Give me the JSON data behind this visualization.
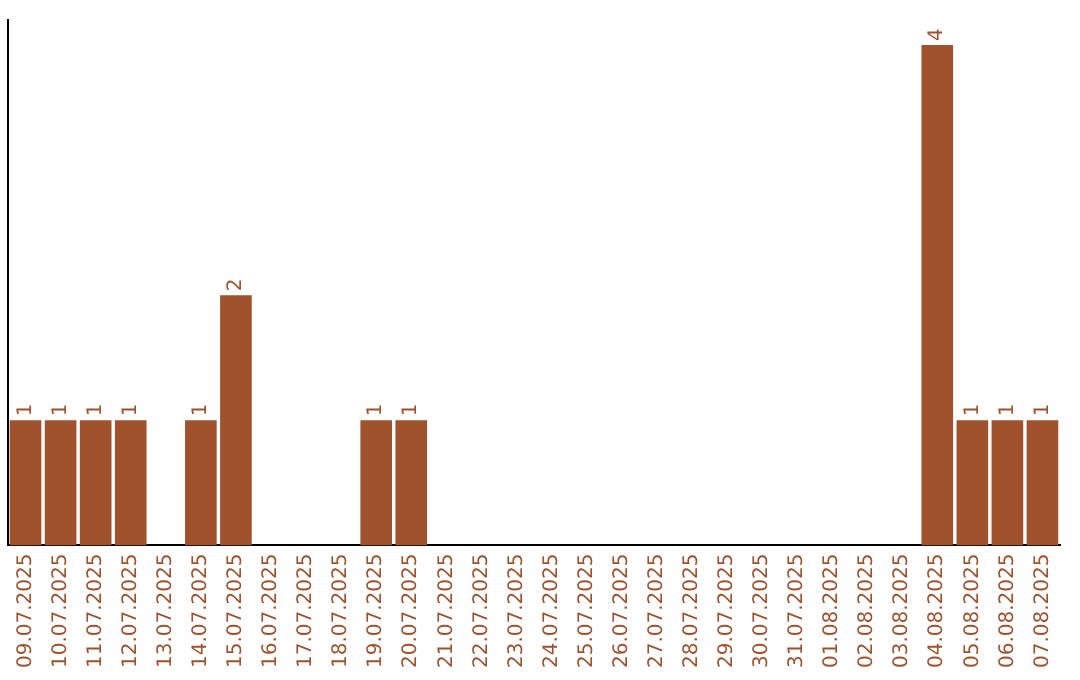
{
  "chart_data": {
    "type": "bar",
    "categories": [
      "09.07.2025",
      "10.07.2025",
      "11.07.2025",
      "12.07.2025",
      "13.07.2025",
      "14.07.2025",
      "15.07.2025",
      "16.07.2025",
      "17.07.2025",
      "18.07.2025",
      "19.07.2025",
      "20.07.2025",
      "21.07.2025",
      "22.07.2025",
      "23.07.2025",
      "24.07.2025",
      "25.07.2025",
      "26.07.2025",
      "27.07.2025",
      "28.07.2025",
      "29.07.2025",
      "30.07.2025",
      "31.07.2025",
      "01.08.2025",
      "02.08.2025",
      "03.08.2025",
      "04.08.2025",
      "05.08.2025",
      "06.08.2025",
      "07.08.2025"
    ],
    "values": [
      1,
      1,
      1,
      1,
      0,
      1,
      2,
      0,
      0,
      0,
      1,
      1,
      0,
      0,
      0,
      0,
      0,
      0,
      0,
      0,
      0,
      0,
      0,
      0,
      0,
      0,
      4,
      1,
      1,
      1
    ],
    "value_labels": [
      "1",
      "1",
      "1",
      "1",
      null,
      "1",
      "2",
      null,
      null,
      null,
      "1",
      "1",
      null,
      null,
      null,
      null,
      null,
      null,
      null,
      null,
      null,
      null,
      null,
      null,
      null,
      null,
      "4",
      "1",
      "1",
      "1"
    ],
    "color": "#a0522d",
    "ylim": [
      0,
      4.2
    ],
    "grid": false,
    "legend": false,
    "tick_labels": "x"
  }
}
